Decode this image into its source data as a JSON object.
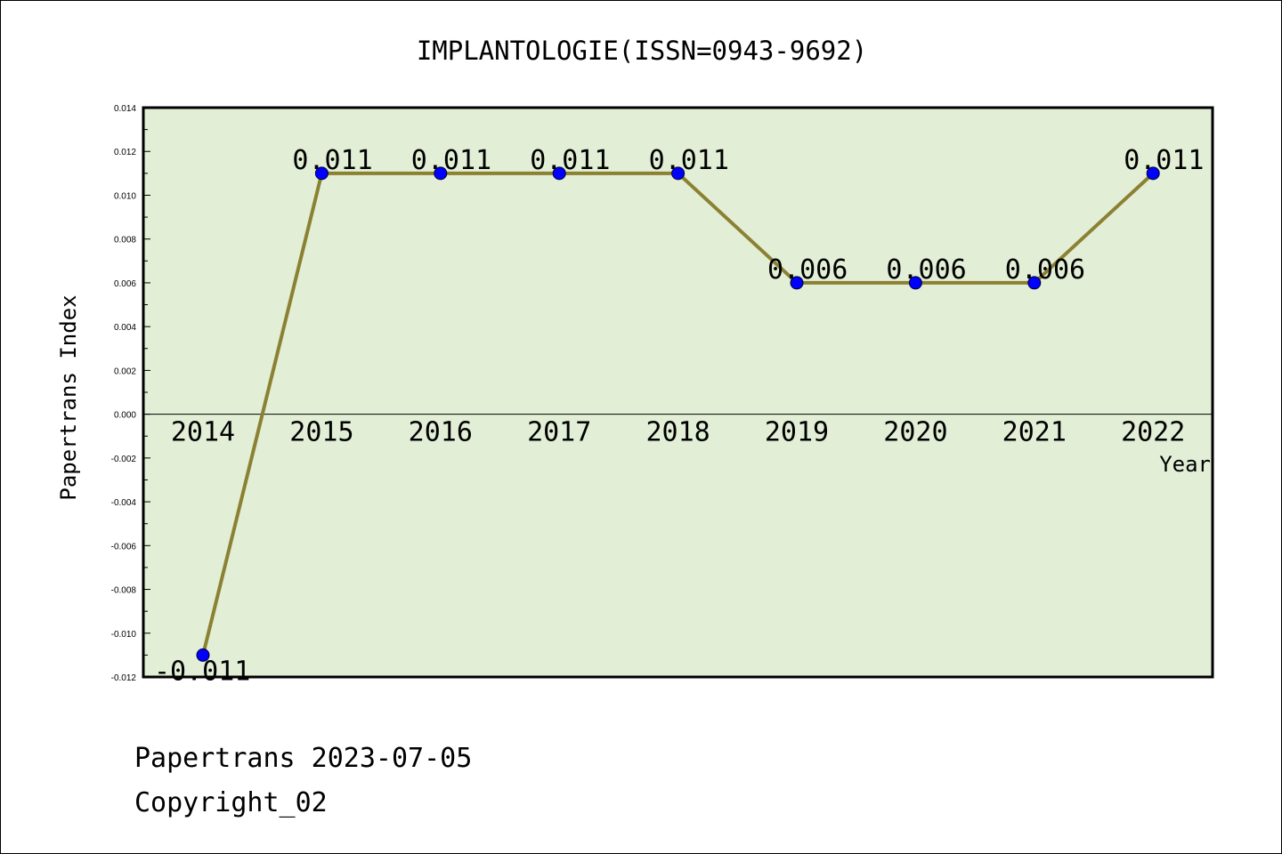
{
  "footer": {
    "line1": "Papertrans 2023-07-05",
    "line2": "Copyright_02"
  },
  "colors": {
    "plot_background": "#e2efd6",
    "line": "#8b8133",
    "marker": "#0000ff",
    "axis": "#000000"
  },
  "chart_data": {
    "type": "line",
    "title": "IMPLANTOLOGIE(ISSN=0943-9692)",
    "xlabel": "Year",
    "ylabel": "Papertrans Index",
    "categories": [
      "2014",
      "2015",
      "2016",
      "2017",
      "2018",
      "2019",
      "2020",
      "2021",
      "2022"
    ],
    "series": [
      {
        "values": [
          -0.011,
          0.011,
          0.011,
          0.011,
          0.011,
          0.006,
          0.006,
          0.006,
          0.011
        ],
        "labels": [
          "-0.011",
          "0.011",
          "0.011",
          "0.011",
          "0.011",
          "0.006",
          "0.006",
          "0.006",
          "0.011"
        ]
      }
    ],
    "ylim": [
      -0.012,
      0.014
    ],
    "yticks": [
      "0.014",
      "0.012",
      "0.010",
      "0.008",
      "0.006",
      "0.004",
      "0.002",
      "0.000",
      "-0.002",
      "-0.004",
      "-0.006",
      "-0.008",
      "-0.010",
      "-0.012"
    ],
    "grid": false,
    "legend": "none"
  }
}
